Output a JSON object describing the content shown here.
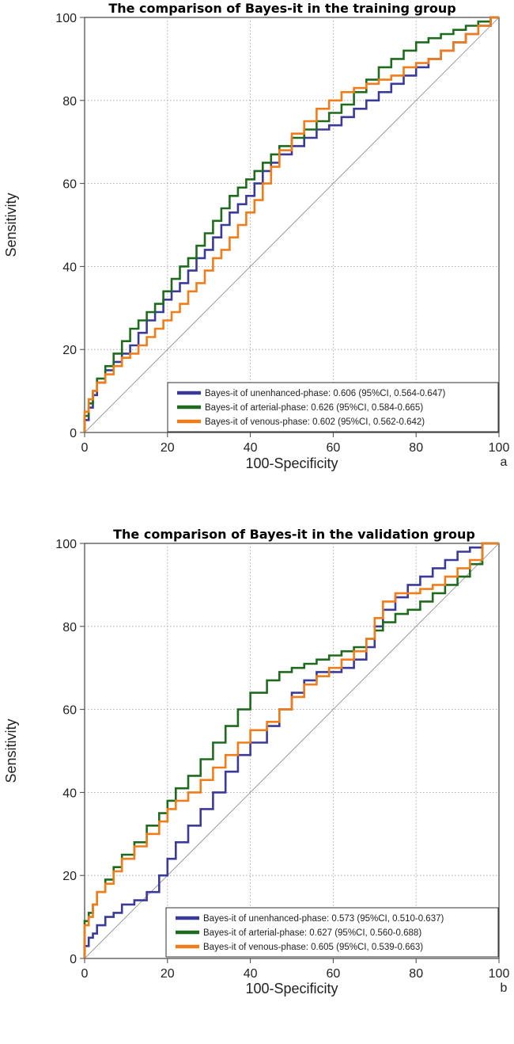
{
  "figure": {
    "panels": [
      {
        "letter": "a"
      },
      {
        "letter": "b"
      }
    ]
  },
  "chart_data": [
    {
      "type": "line",
      "title": "The comparison of Bayes-it in the training group",
      "xlabel": "100-Specificity",
      "ylabel": "Sensitivity",
      "xlim": [
        0,
        100
      ],
      "ylim": [
        0,
        100
      ],
      "xticks": [
        0,
        20,
        40,
        60,
        80,
        100
      ],
      "yticks": [
        0,
        20,
        40,
        60,
        80,
        100
      ],
      "grid": true,
      "legend_position": "bottom-right",
      "diagonal_reference": true,
      "series": [
        {
          "name": "Bayes-it of unenhanced-phase: 0.606 (95%CI, 0.564-0.647)",
          "color": "#3a3a9a",
          "x": [
            0,
            1,
            2,
            3,
            5,
            7,
            9,
            11,
            13,
            15,
            17,
            19,
            21,
            23,
            25,
            27,
            29,
            31,
            33,
            35,
            37,
            39,
            41,
            43,
            45,
            47,
            50,
            53,
            56,
            59,
            62,
            65,
            68,
            71,
            74,
            77,
            80,
            83,
            86,
            89,
            92,
            95,
            98,
            100
          ],
          "y": [
            0,
            3,
            6,
            9,
            12,
            15,
            17,
            19,
            21,
            24,
            27,
            29,
            32,
            34,
            36,
            39,
            42,
            44,
            47,
            50,
            53,
            55,
            57,
            60,
            63,
            65,
            67,
            69,
            71,
            73,
            74,
            76,
            78,
            80,
            82,
            84,
            86,
            88,
            90,
            92,
            94,
            96,
            98,
            100
          ]
        },
        {
          "name": "Bayes-it of arterial-phase: 0.626 (95%CI, 0.584-0.665)",
          "color": "#1e6b1e",
          "x": [
            0,
            1,
            2,
            3,
            5,
            7,
            9,
            11,
            13,
            15,
            17,
            19,
            21,
            23,
            25,
            27,
            29,
            31,
            33,
            35,
            37,
            39,
            41,
            43,
            45,
            47,
            50,
            53,
            56,
            59,
            62,
            65,
            68,
            71,
            74,
            77,
            80,
            83,
            86,
            89,
            92,
            95,
            98,
            100
          ],
          "y": [
            0,
            4,
            7,
            10,
            13,
            16,
            19,
            22,
            25,
            27,
            29,
            31,
            34,
            37,
            40,
            42,
            45,
            48,
            51,
            54,
            57,
            59,
            61,
            63,
            65,
            67,
            69,
            71,
            73,
            75,
            77,
            79,
            82,
            85,
            88,
            90,
            92,
            94,
            95,
            96,
            97,
            98,
            99,
            100
          ]
        },
        {
          "name": "Bayes-it of venous-phase: 0.602 (95%CI, 0.562-0.642)",
          "color": "#f07d1a",
          "x": [
            0,
            1,
            2,
            3,
            5,
            7,
            9,
            11,
            13,
            15,
            17,
            19,
            21,
            23,
            25,
            27,
            29,
            31,
            33,
            35,
            37,
            39,
            41,
            43,
            45,
            47,
            50,
            53,
            56,
            59,
            62,
            65,
            68,
            71,
            74,
            77,
            80,
            83,
            86,
            89,
            92,
            95,
            98,
            100
          ],
          "y": [
            0,
            5,
            8,
            10,
            12,
            14,
            16,
            18,
            19,
            21,
            23,
            25,
            27,
            29,
            31,
            34,
            36,
            39,
            42,
            44,
            47,
            50,
            53,
            56,
            60,
            64,
            68,
            72,
            75,
            78,
            80,
            82,
            83,
            84,
            85,
            86,
            88,
            89,
            90,
            92,
            94,
            96,
            98,
            100
          ]
        }
      ]
    },
    {
      "type": "line",
      "title": "The comparison of Bayes-it in the validation group",
      "xlabel": "100-Specificity",
      "ylabel": "Sensitivity",
      "xlim": [
        0,
        100
      ],
      "ylim": [
        0,
        100
      ],
      "xticks": [
        0,
        20,
        40,
        60,
        80,
        100
      ],
      "yticks": [
        0,
        20,
        40,
        60,
        80,
        100
      ],
      "grid": true,
      "legend_position": "bottom-right",
      "diagonal_reference": true,
      "series": [
        {
          "name": "Bayes-it of unenhanced-phase: 0.573 (95%CI, 0.510-0.637)",
          "color": "#3a3a9a",
          "x": [
            0,
            1,
            2,
            3,
            5,
            7,
            9,
            12,
            15,
            18,
            20,
            22,
            25,
            28,
            31,
            34,
            37,
            40,
            44,
            47,
            50,
            53,
            56,
            59,
            62,
            65,
            68,
            70,
            72,
            75,
            78,
            81,
            84,
            87,
            90,
            93,
            96,
            100
          ],
          "y": [
            0,
            3,
            5,
            6,
            8,
            10,
            11,
            13,
            14,
            16,
            20,
            24,
            28,
            32,
            36,
            40,
            45,
            49,
            52,
            56,
            60,
            64,
            67,
            69,
            69,
            70,
            72,
            75,
            80,
            84,
            87,
            90,
            92,
            94,
            96,
            98,
            99,
            100
          ]
        },
        {
          "name": "Bayes-it of arterial-phase: 0.627 (95%CI, 0.560-0.688)",
          "color": "#1e6b1e",
          "x": [
            0,
            1,
            2,
            3,
            5,
            7,
            9,
            12,
            15,
            18,
            20,
            22,
            25,
            28,
            31,
            34,
            37,
            40,
            44,
            47,
            50,
            53,
            56,
            59,
            62,
            65,
            68,
            70,
            72,
            75,
            78,
            81,
            84,
            87,
            90,
            93,
            96,
            100
          ],
          "y": [
            0,
            9,
            11,
            13,
            16,
            19,
            22,
            25,
            28,
            32,
            35,
            38,
            41,
            44,
            48,
            52,
            56,
            60,
            64,
            67,
            69,
            70,
            71,
            72,
            73,
            74,
            75,
            77,
            79,
            81,
            83,
            84,
            86,
            88,
            90,
            92,
            95,
            100
          ]
        },
        {
          "name": "Bayes-it of venous-phase: 0.605 (95%CI, 0.539-0.663)",
          "color": "#f07d1a",
          "x": [
            0,
            1,
            2,
            3,
            5,
            7,
            9,
            12,
            15,
            18,
            20,
            22,
            25,
            28,
            31,
            34,
            37,
            40,
            44,
            47,
            50,
            53,
            56,
            59,
            62,
            65,
            68,
            70,
            72,
            75,
            78,
            81,
            84,
            87,
            90,
            93,
            96,
            100
          ],
          "y": [
            0,
            8,
            10,
            13,
            16,
            18,
            21,
            24,
            27,
            30,
            33,
            36,
            38,
            40,
            43,
            46,
            49,
            52,
            55,
            57,
            60,
            63,
            66,
            68,
            70,
            72,
            74,
            77,
            82,
            86,
            88,
            88,
            89,
            90,
            92,
            94,
            96,
            100
          ]
        }
      ]
    }
  ]
}
